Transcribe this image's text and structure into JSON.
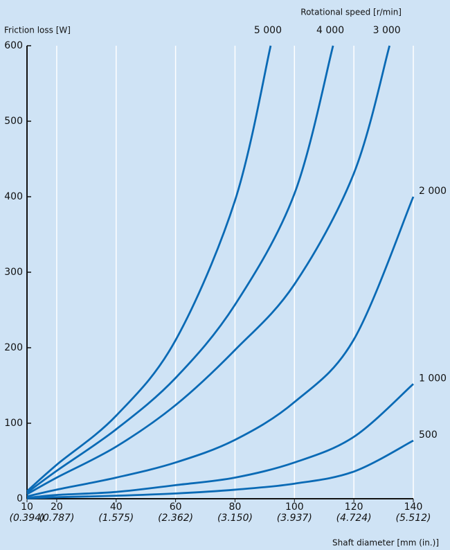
{
  "chart_data": {
    "type": "line",
    "y_label": "Friction loss [W]",
    "legend_title": "Rotational speed [r/min]",
    "x_label": "Shaft diameter [mm (in.)]",
    "xlim": [
      10,
      140
    ],
    "ylim": [
      0,
      600
    ],
    "xticks": [
      10,
      20,
      40,
      60,
      80,
      100,
      120,
      140
    ],
    "xticks_inch": [
      "(0.394)",
      "(0.787)",
      "(1.575)",
      "(2.362)",
      "(3.150)",
      "(3.937)",
      "(4.724)",
      "(5.512)"
    ],
    "yticks": [
      0,
      100,
      200,
      300,
      400,
      500,
      600
    ],
    "grid": true,
    "color": "#0a6ab5",
    "series": [
      {
        "name": "5 000",
        "x": [
          10,
          20,
          40,
          60,
          80,
          92
        ],
        "values": [
          10,
          45,
          110,
          210,
          395,
          600
        ]
      },
      {
        "name": "4 000",
        "x": [
          10,
          20,
          40,
          60,
          80,
          100,
          113
        ],
        "values": [
          8,
          37,
          92,
          160,
          257,
          404,
          600
        ]
      },
      {
        "name": "3 000",
        "x": [
          10,
          20,
          40,
          60,
          80,
          100,
          120,
          132
        ],
        "values": [
          6,
          28,
          69,
          124,
          197,
          284,
          431,
          600
        ]
      },
      {
        "name": "2 000",
        "x": [
          10,
          20,
          40,
          60,
          80,
          100,
          120,
          140
        ],
        "values": [
          3,
          12,
          28,
          48,
          78,
          128,
          211,
          400
        ]
      },
      {
        "name": "1 000",
        "x": [
          10,
          20,
          40,
          60,
          80,
          100,
          120,
          140
        ],
        "values": [
          1,
          5,
          9,
          18,
          28,
          48,
          82,
          152
        ]
      },
      {
        "name": "500",
        "x": [
          10,
          20,
          40,
          60,
          80,
          100,
          120,
          140
        ],
        "values": [
          0.5,
          2,
          4,
          7,
          12,
          20,
          36,
          77
        ]
      }
    ]
  }
}
